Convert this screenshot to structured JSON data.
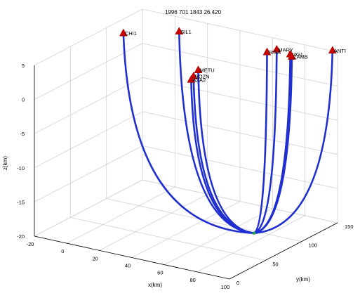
{
  "chart_data": {
    "type": "line3d",
    "title": "1996  701 1843 26.420",
    "xlabel": "x(km)",
    "ylabel": "y(km)",
    "zlabel": "z(km)",
    "xlim": [
      -20,
      100
    ],
    "ylim": [
      0,
      150
    ],
    "zlim": [
      -20,
      5
    ],
    "x_ticks": [
      -20,
      0,
      20,
      40,
      60,
      80,
      100
    ],
    "y_ticks": [
      0,
      50,
      100,
      150
    ],
    "z_ticks": [
      -20,
      -15,
      -10,
      -5,
      0,
      5
    ],
    "x_tick_labels": [
      "-20",
      "0",
      "20",
      "40",
      "60",
      "80",
      "100"
    ],
    "y_tick_labels": [
      "0",
      "50",
      "100",
      "150"
    ],
    "z_tick_labels": [
      "-20",
      "-15",
      "-10",
      "-5",
      "0",
      "5"
    ],
    "grid": true,
    "ray_color": "#1f2fd0",
    "station_color": "#cc0000",
    "source_color": "#22aa44",
    "source": {
      "x": 81,
      "y": 77,
      "z": -18.5
    },
    "stations": [
      {
        "name": "CHI1",
        "x": -6,
        "y": 92,
        "z": 5.4
      },
      {
        "name": "SIL1",
        "x": 15,
        "y": 122,
        "z": 5.1
      },
      {
        "name": "METU",
        "x": 40,
        "y": 92,
        "z": 2.4
      },
      {
        "name": "BOZN",
        "x": 38,
        "y": 90,
        "z": 1.5
      },
      {
        "name": "AZA2",
        "x": 37,
        "y": 89,
        "z": 1.0
      },
      {
        "name": "MARY",
        "x": 75,
        "y": 122,
        "z": 5.6
      },
      {
        "name": "RISA",
        "x": 73,
        "y": 113,
        "z": 5.6
      },
      {
        "name": "MG1",
        "x": 82,
        "y": 125,
        "z": 5.1
      },
      {
        "name": "ZAMB",
        "x": 83,
        "y": 125,
        "z": 4.8
      },
      {
        "name": "ANTI",
        "x": 100,
        "y": 143,
        "z": 5.6
      }
    ]
  }
}
